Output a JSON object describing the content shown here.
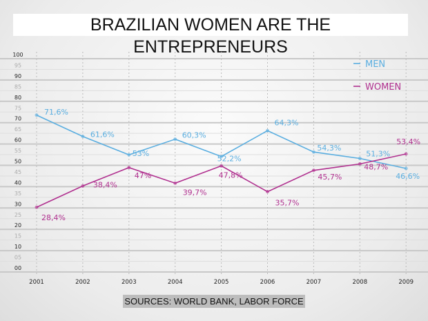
{
  "chart_data": {
    "type": "line",
    "title": "BRAZILIAN WOMEN ARE THE ENTREPRENEURS",
    "x": [
      "2001",
      "2002",
      "2003",
      "2004",
      "2005",
      "2006",
      "2007",
      "2008",
      "2009"
    ],
    "ylim": [
      0,
      100
    ],
    "yticks": [
      "00",
      "05",
      "10",
      "15",
      "20",
      "25",
      "30",
      "35",
      "40",
      "45",
      "50",
      "55",
      "60",
      "65",
      "70",
      "75",
      "80",
      "85",
      "90",
      "95",
      "100"
    ],
    "legend_position": "top-right",
    "grid": true,
    "series": [
      {
        "name": "MEN",
        "color": "#5aaee0",
        "values": [
          71.6,
          61.6,
          53,
          60.3,
          52.2,
          64.3,
          54.3,
          51.3,
          46.6
        ],
        "labels": [
          "71,6%",
          "61,6%",
          "53%",
          "60,3%",
          "52,2%",
          "64,3%",
          "54,3%",
          "51,3%",
          "46,6%"
        ]
      },
      {
        "name": "WOMEN",
        "color": "#b0308f",
        "values": [
          28.4,
          38.4,
          47,
          39.7,
          47.8,
          35.7,
          45.7,
          48.7,
          53.4
        ],
        "labels": [
          "28,4%",
          "38,4%",
          "47%",
          "39,7%",
          "47,8%",
          "35,7%",
          "45,7%",
          "48,7%",
          "53,4%"
        ]
      }
    ],
    "source": "SOURCES: WORLD BANK, LABOR FORCE"
  }
}
